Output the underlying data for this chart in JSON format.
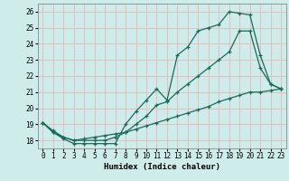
{
  "xlabel": "Humidex (Indice chaleur)",
  "bg_color": "#cdecea",
  "line_color": "#1a6b5a",
  "grid_color": "#b8ddd8",
  "xlim": [
    -0.5,
    23.5
  ],
  "ylim": [
    17.5,
    26.5
  ],
  "xticks": [
    0,
    1,
    2,
    3,
    4,
    5,
    6,
    7,
    8,
    9,
    10,
    11,
    12,
    13,
    14,
    15,
    16,
    17,
    18,
    19,
    20,
    21,
    22,
    23
  ],
  "yticks": [
    18,
    19,
    20,
    21,
    22,
    23,
    24,
    25,
    26
  ],
  "line1_x": [
    0,
    1,
    2,
    3,
    4,
    5,
    6,
    7,
    8,
    9,
    10,
    11,
    12,
    13,
    14,
    15,
    16,
    17,
    18,
    19,
    20,
    21,
    22,
    23
  ],
  "line1_y": [
    19.1,
    18.5,
    18.1,
    17.8,
    17.8,
    17.8,
    17.8,
    17.8,
    19.0,
    19.8,
    20.5,
    21.2,
    20.5,
    23.3,
    23.8,
    24.8,
    25.0,
    25.2,
    26.0,
    25.9,
    25.8,
    23.3,
    21.5,
    21.2
  ],
  "line2_x": [
    0,
    1,
    2,
    3,
    4,
    5,
    6,
    7,
    8,
    9,
    10,
    11,
    12,
    13,
    14,
    15,
    16,
    17,
    18,
    19,
    20,
    21,
    22,
    23
  ],
  "line2_y": [
    19.1,
    18.6,
    18.2,
    18.0,
    18.0,
    18.0,
    18.0,
    18.2,
    18.5,
    19.0,
    19.5,
    20.2,
    20.4,
    21.0,
    21.5,
    22.0,
    22.5,
    23.0,
    23.5,
    24.8,
    24.8,
    22.5,
    21.5,
    21.2
  ],
  "line3_x": [
    0,
    1,
    2,
    3,
    4,
    5,
    6,
    7,
    8,
    9,
    10,
    11,
    12,
    13,
    14,
    15,
    16,
    17,
    18,
    19,
    20,
    21,
    22,
    23
  ],
  "line3_y": [
    19.1,
    18.5,
    18.2,
    18.0,
    18.1,
    18.2,
    18.3,
    18.4,
    18.5,
    18.7,
    18.9,
    19.1,
    19.3,
    19.5,
    19.7,
    19.9,
    20.1,
    20.4,
    20.6,
    20.8,
    21.0,
    21.0,
    21.1,
    21.2
  ]
}
